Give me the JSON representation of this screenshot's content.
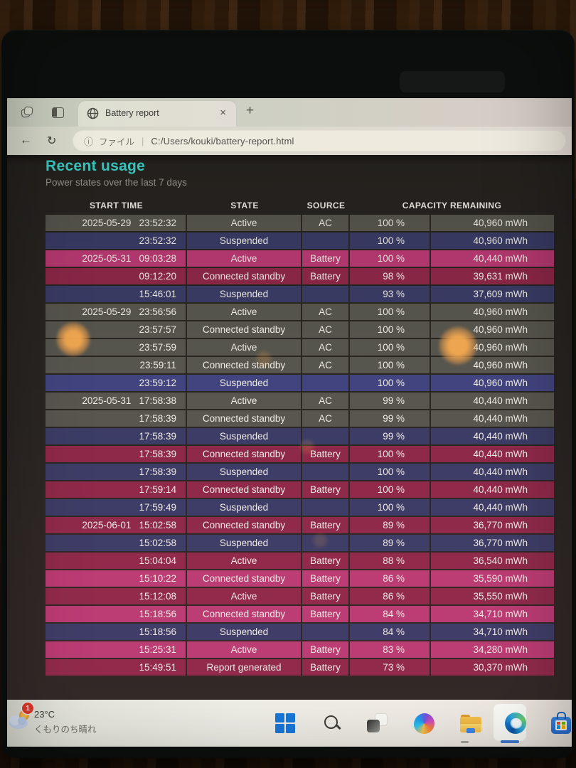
{
  "browser": {
    "tab": {
      "title": "Battery report"
    },
    "glyphs": {
      "back": "←",
      "refresh": "↻",
      "new_tab": "+",
      "close": "×",
      "info": "ⓘ",
      "divider": "|"
    },
    "address": {
      "scheme_label": "ファイル",
      "url": "C:/Users/kouki/battery-report.html"
    }
  },
  "page": {
    "title": "Recent usage",
    "subtitle": "Power states over the last 7 days"
  },
  "table": {
    "headers": [
      "START TIME",
      "STATE",
      "SOURCE",
      "CAPACITY REMAINING"
    ],
    "rows": [
      {
        "date": "2025-05-29",
        "time": "23:52:32",
        "state": "Active",
        "source": "AC",
        "pct": "100 %",
        "mwh": "40,960 mWh",
        "color": "gray"
      },
      {
        "date": "",
        "time": "23:52:32",
        "state": "Suspended",
        "source": "",
        "pct": "100 %",
        "mwh": "40,960 mWh",
        "color": "navy"
      },
      {
        "date": "2025-05-31",
        "time": "09:03:28",
        "state": "Active",
        "source": "Battery",
        "pct": "100 %",
        "mwh": "40,440 mWh",
        "color": "magenta"
      },
      {
        "date": "",
        "time": "09:12:20",
        "state": "Connected standby",
        "source": "Battery",
        "pct": "98 %",
        "mwh": "39,631 mWh",
        "color": "maroon"
      },
      {
        "date": "",
        "time": "15:46:01",
        "state": "Suspended",
        "source": "",
        "pct": "93 %",
        "mwh": "37,609 mWh",
        "color": "navy"
      },
      {
        "date": "2025-05-29",
        "time": "23:56:56",
        "state": "Active",
        "source": "AC",
        "pct": "100 %",
        "mwh": "40,960 mWh",
        "color": "gray"
      },
      {
        "date": "",
        "time": "23:57:57",
        "state": "Connected standby",
        "source": "AC",
        "pct": "100 %",
        "mwh": "40,960 mWh",
        "color": "gray"
      },
      {
        "date": "",
        "time": "23:57:59",
        "state": "Active",
        "source": "AC",
        "pct": "100 %",
        "mwh": "40,960 mWh",
        "color": "gray"
      },
      {
        "date": "",
        "time": "23:59:11",
        "state": "Connected standby",
        "source": "AC",
        "pct": "100 %",
        "mwh": "40,960 mWh",
        "color": "gray"
      },
      {
        "date": "",
        "time": "23:59:12",
        "state": "Suspended",
        "source": "",
        "pct": "100 %",
        "mwh": "40,960 mWh",
        "color": "navybright"
      },
      {
        "date": "2025-05-31",
        "time": "17:58:38",
        "state": "Active",
        "source": "AC",
        "pct": "99 %",
        "mwh": "40,440 mWh",
        "color": "gray"
      },
      {
        "date": "",
        "time": "17:58:39",
        "state": "Connected standby",
        "source": "AC",
        "pct": "99 %",
        "mwh": "40,440 mWh",
        "color": "gray"
      },
      {
        "date": "",
        "time": "17:58:39",
        "state": "Suspended",
        "source": "",
        "pct": "99 %",
        "mwh": "40,440 mWh",
        "color": "navy"
      },
      {
        "date": "",
        "time": "17:58:39",
        "state": "Connected standby",
        "source": "Battery",
        "pct": "100 %",
        "mwh": "40,440 mWh",
        "color": "maroon"
      },
      {
        "date": "",
        "time": "17:58:39",
        "state": "Suspended",
        "source": "",
        "pct": "100 %",
        "mwh": "40,440 mWh",
        "color": "navy"
      },
      {
        "date": "",
        "time": "17:59:14",
        "state": "Connected standby",
        "source": "Battery",
        "pct": "100 %",
        "mwh": "40,440 mWh",
        "color": "maroon"
      },
      {
        "date": "",
        "time": "17:59:49",
        "state": "Suspended",
        "source": "",
        "pct": "100 %",
        "mwh": "40,440 mWh",
        "color": "navy"
      },
      {
        "date": "2025-06-01",
        "time": "15:02:58",
        "state": "Connected standby",
        "source": "Battery",
        "pct": "89 %",
        "mwh": "36,770 mWh",
        "color": "maroon"
      },
      {
        "date": "",
        "time": "15:02:58",
        "state": "Suspended",
        "source": "",
        "pct": "89 %",
        "mwh": "36,770 mWh",
        "color": "navy"
      },
      {
        "date": "",
        "time": "15:04:04",
        "state": "Active",
        "source": "Battery",
        "pct": "88 %",
        "mwh": "36,540 mWh",
        "color": "maroon"
      },
      {
        "date": "",
        "time": "15:10:22",
        "state": "Connected standby",
        "source": "Battery",
        "pct": "86 %",
        "mwh": "35,590 mWh",
        "color": "magenta"
      },
      {
        "date": "",
        "time": "15:12:08",
        "state": "Active",
        "source": "Battery",
        "pct": "86 %",
        "mwh": "35,550 mWh",
        "color": "maroon"
      },
      {
        "date": "",
        "time": "15:18:56",
        "state": "Connected standby",
        "source": "Battery",
        "pct": "84 %",
        "mwh": "34,710 mWh",
        "color": "magenta"
      },
      {
        "date": "",
        "time": "15:18:56",
        "state": "Suspended",
        "source": "",
        "pct": "84 %",
        "mwh": "34,710 mWh",
        "color": "navy"
      },
      {
        "date": "",
        "time": "15:25:31",
        "state": "Active",
        "source": "Battery",
        "pct": "83 %",
        "mwh": "34,280 mWh",
        "color": "magenta"
      },
      {
        "date": "",
        "time": "15:49:51",
        "state": "Report generated",
        "source": "Battery",
        "pct": "73 %",
        "mwh": "30,370 mWh",
        "color": "maroon"
      }
    ]
  },
  "taskbar": {
    "weather": {
      "badge": "1",
      "temp": "23°C",
      "condition": "くもりのち晴れ"
    },
    "icons": [
      "windows-start-icon",
      "search-icon",
      "task-view-icon",
      "copilot-icon",
      "file-explorer-icon",
      "edge-icon",
      "microsoft-store-icon"
    ]
  },
  "colors": {
    "accent_teal": "#3cd8d0",
    "row_gray": "#57564e",
    "row_navy": "#3a3c66",
    "row_navybright": "#42447f",
    "row_magenta": "#ba3a73",
    "row_maroon": "#8e2849",
    "taskbar_underline": "#3f7ad0"
  }
}
